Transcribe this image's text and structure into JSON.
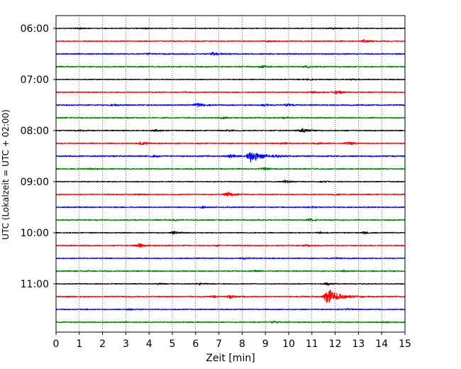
{
  "chart_data": {
    "type": "line",
    "title": "",
    "xlabel": "Zeit  [min]",
    "ylabel": "UTC (Lokalzeit = UTC + 02:00)",
    "xlim": [
      0,
      15
    ],
    "x_ticks": [
      0,
      1,
      2,
      3,
      4,
      5,
      6,
      7,
      8,
      9,
      10,
      11,
      12,
      13,
      14,
      15
    ],
    "x_tick_labels": [
      "0",
      "1",
      "2",
      "3",
      "4",
      "5",
      "6",
      "7",
      "8",
      "9",
      "10",
      "11",
      "12",
      "13",
      "14",
      "15"
    ],
    "y_tick_labels": [
      "06:00",
      "07:00",
      "08:00",
      "09:00",
      "10:00",
      "11:00"
    ],
    "vertical_grid": "dotted",
    "color_cycle": [
      "#000000",
      "#ff0000",
      "#0000ff",
      "#008000"
    ],
    "series": [
      {
        "start": "06:00",
        "noise": 0.35,
        "events": [
          {
            "t": 1.0,
            "amp": 0.6
          },
          {
            "t": 3.9,
            "amp": 0.5
          },
          {
            "t": 11.9,
            "amp": 0.6
          }
        ]
      },
      {
        "start": "06:15",
        "noise": 0.4,
        "events": [
          {
            "t": 13.3,
            "amp": 1.6
          },
          {
            "t": 9.2,
            "amp": 0.6
          }
        ]
      },
      {
        "start": "06:30",
        "noise": 0.45,
        "events": [
          {
            "t": 6.8,
            "amp": 1.6
          },
          {
            "t": 4.0,
            "amp": 0.7
          }
        ]
      },
      {
        "start": "06:45",
        "noise": 0.45,
        "events": [
          {
            "t": 8.9,
            "amp": 1.0
          },
          {
            "t": 10.8,
            "amp": 1.1
          }
        ]
      },
      {
        "start": "07:00",
        "noise": 0.35,
        "events": [
          {
            "t": 10.9,
            "amp": 0.9
          },
          {
            "t": 12.8,
            "amp": 0.6
          }
        ]
      },
      {
        "start": "07:15",
        "noise": 0.4,
        "events": [
          {
            "t": 12.1,
            "amp": 1.6
          },
          {
            "t": 11.1,
            "amp": 0.8
          }
        ]
      },
      {
        "start": "07:30",
        "noise": 0.45,
        "events": [
          {
            "t": 6.1,
            "amp": 2.0
          },
          {
            "t": 10.0,
            "amp": 1.1
          },
          {
            "t": 9.0,
            "amp": 0.8
          },
          {
            "t": 2.5,
            "amp": 0.6
          }
        ]
      },
      {
        "start": "07:45",
        "noise": 0.45,
        "events": [
          {
            "t": 7.2,
            "amp": 0.8
          },
          {
            "t": 9.9,
            "amp": 0.6
          }
        ]
      },
      {
        "start": "08:00",
        "noise": 0.4,
        "events": [
          {
            "t": 10.6,
            "amp": 2.0
          },
          {
            "t": 4.3,
            "amp": 1.0
          },
          {
            "t": 7.5,
            "amp": 0.8
          },
          {
            "t": 1.1,
            "amp": 0.6
          }
        ]
      },
      {
        "start": "08:15",
        "noise": 0.4,
        "events": [
          {
            "t": 3.7,
            "amp": 1.5
          },
          {
            "t": 12.6,
            "amp": 1.6
          },
          {
            "t": 11.3,
            "amp": 0.8
          },
          {
            "t": 9.8,
            "amp": 0.7
          }
        ]
      },
      {
        "start": "08:30",
        "noise": 0.5,
        "events": [
          {
            "t": 8.4,
            "amp": 5.6
          },
          {
            "t": 7.5,
            "amp": 1.6
          },
          {
            "t": 9.5,
            "amp": 1.0
          },
          {
            "t": 4.2,
            "amp": 0.6
          }
        ]
      },
      {
        "start": "08:45",
        "noise": 0.45,
        "events": [
          {
            "t": 9.0,
            "amp": 1.0
          },
          {
            "t": 1.5,
            "amp": 0.6
          }
        ]
      },
      {
        "start": "09:00",
        "noise": 0.35,
        "events": [
          {
            "t": 9.9,
            "amp": 1.3
          },
          {
            "t": 11.5,
            "amp": 0.8
          }
        ]
      },
      {
        "start": "09:15",
        "noise": 0.4,
        "events": [
          {
            "t": 7.4,
            "amp": 2.0
          },
          {
            "t": 12.1,
            "amp": 0.7
          },
          {
            "t": 3.6,
            "amp": 0.5
          }
        ]
      },
      {
        "start": "09:30",
        "noise": 0.4,
        "events": [
          {
            "t": 6.3,
            "amp": 0.7
          },
          {
            "t": 11.0,
            "amp": 0.6
          }
        ]
      },
      {
        "start": "09:45",
        "noise": 0.45,
        "events": [
          {
            "t": 10.9,
            "amp": 1.6
          },
          {
            "t": 5.1,
            "amp": 0.6
          }
        ]
      },
      {
        "start": "10:00",
        "noise": 0.35,
        "events": [
          {
            "t": 5.1,
            "amp": 1.3
          },
          {
            "t": 13.3,
            "amp": 1.2
          },
          {
            "t": 11.4,
            "amp": 0.8
          }
        ]
      },
      {
        "start": "10:15",
        "noise": 0.4,
        "events": [
          {
            "t": 3.6,
            "amp": 2.0
          },
          {
            "t": 10.8,
            "amp": 0.8
          },
          {
            "t": 7.0,
            "amp": 0.6
          }
        ]
      },
      {
        "start": "10:30",
        "noise": 0.4,
        "events": [
          {
            "t": 8.1,
            "amp": 0.7
          },
          {
            "t": 12.0,
            "amp": 0.6
          }
        ]
      },
      {
        "start": "10:45",
        "noise": 0.45,
        "events": [
          {
            "t": 8.6,
            "amp": 0.6
          },
          {
            "t": 12.4,
            "amp": 0.6
          }
        ]
      },
      {
        "start": "11:00",
        "noise": 0.35,
        "events": [
          {
            "t": 6.2,
            "amp": 1.0
          },
          {
            "t": 11.7,
            "amp": 1.2
          },
          {
            "t": 4.5,
            "amp": 0.6
          }
        ]
      },
      {
        "start": "11:15",
        "noise": 0.45,
        "events": [
          {
            "t": 11.7,
            "amp": 7.0
          },
          {
            "t": 7.5,
            "amp": 1.5
          },
          {
            "t": 6.8,
            "amp": 0.8
          }
        ]
      },
      {
        "start": "11:30",
        "noise": 0.4,
        "events": [
          {
            "t": 12.6,
            "amp": 0.6
          },
          {
            "t": 3.2,
            "amp": 0.5
          }
        ]
      },
      {
        "start": "11:45",
        "noise": 0.45,
        "events": [
          {
            "t": 9.4,
            "amp": 1.0
          },
          {
            "t": 14.2,
            "amp": 0.6
          }
        ]
      }
    ]
  }
}
